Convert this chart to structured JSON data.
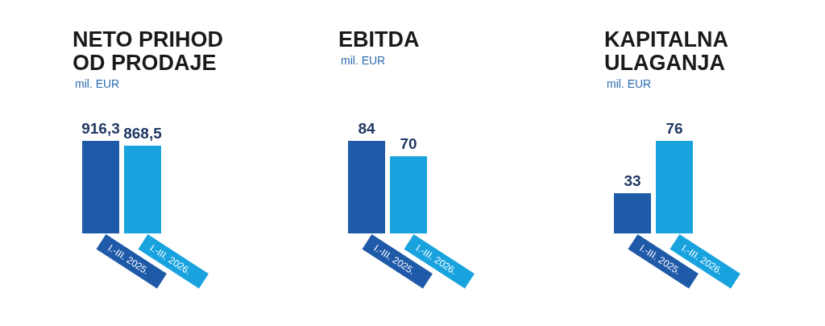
{
  "chart_data": [
    {
      "type": "bar",
      "title": "NETO PRIHOD OD PRODAJE",
      "subtitle": "mil. EUR",
      "categories": [
        "I.-III. 2025.",
        "I.-III. 2026."
      ],
      "values": [
        916.3,
        868.5
      ],
      "value_labels": [
        "916,3",
        "868,5"
      ],
      "colors": [
        "#1f5aa8",
        "#19a3de"
      ]
    },
    {
      "type": "bar",
      "title": "EBITDA",
      "subtitle": "mil. EUR",
      "categories": [
        "I.-III. 2025.",
        "I.-III. 2026."
      ],
      "values": [
        84,
        70
      ],
      "value_labels": [
        "84",
        "70"
      ],
      "colors": [
        "#1f5aa8",
        "#19a3de"
      ]
    },
    {
      "type": "bar",
      "title": "KAPITALNA ULAGANJA",
      "subtitle": "mil. EUR",
      "categories": [
        "I.-III. 2025.",
        "I.-III. 2026."
      ],
      "values": [
        33,
        76
      ],
      "value_labels": [
        "33",
        "76"
      ],
      "colors": [
        "#1f5aa8",
        "#19a3de"
      ]
    }
  ]
}
